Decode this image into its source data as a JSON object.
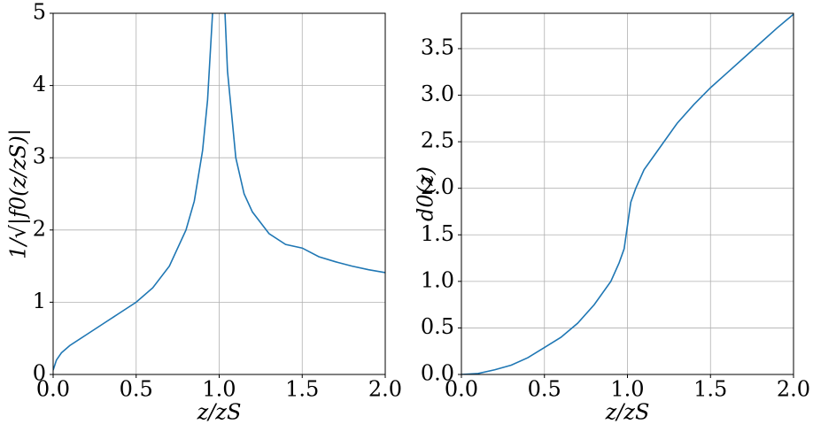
{
  "chart_data": [
    {
      "type": "line",
      "xlabel": "z/zS",
      "ylabel": "1/√|f0(z/zS)|",
      "x": [
        0,
        0.02,
        0.05,
        0.1,
        0.2,
        0.3,
        0.4,
        0.5,
        0.6,
        0.7,
        0.8,
        0.85,
        0.9,
        0.93,
        0.96,
        1.0,
        1.035,
        1.05,
        1.1,
        1.15,
        1.2,
        1.3,
        1.4,
        1.5,
        1.6,
        1.7,
        1.8,
        1.9,
        2.0
      ],
      "series": [
        {
          "color": "#1f77b4",
          "values": [
            0.06,
            0.2,
            0.3,
            0.4,
            0.55,
            0.7,
            0.85,
            1.0,
            1.2,
            1.5,
            2.0,
            2.4,
            3.1,
            3.8,
            5.0,
            null,
            5.0,
            4.2,
            3.0,
            2.5,
            2.25,
            1.95,
            1.8,
            1.75,
            1.63,
            1.56,
            1.5,
            1.45,
            1.41
          ]
        }
      ],
      "xlim": [
        0,
        2
      ],
      "ylim": [
        0,
        5
      ],
      "xticks": [
        {
          "value": 0,
          "label": "0.0"
        },
        {
          "value": 0.5,
          "label": "0.5"
        },
        {
          "value": 1,
          "label": "1.0"
        },
        {
          "value": 1.5,
          "label": "1.5"
        },
        {
          "value": 2,
          "label": "2.0"
        }
      ],
      "yticks": [
        0,
        1,
        2,
        3,
        4,
        5
      ],
      "grid": true
    },
    {
      "type": "line",
      "xlabel": "z/zS",
      "ylabel": "d0(z)",
      "x": [
        0,
        0.1,
        0.2,
        0.3,
        0.4,
        0.5,
        0.6,
        0.7,
        0.8,
        0.9,
        0.95,
        0.98,
        1.0,
        1.02,
        1.05,
        1.1,
        1.2,
        1.3,
        1.4,
        1.5,
        1.6,
        1.7,
        1.8,
        1.9,
        2.0
      ],
      "series": [
        {
          "color": "#1f77b4",
          "values": [
            0,
            0.01,
            0.05,
            0.1,
            0.18,
            0.29,
            0.4,
            0.55,
            0.75,
            1.0,
            1.2,
            1.35,
            1.6,
            1.85,
            2.0,
            2.2,
            2.45,
            2.7,
            2.9,
            3.08,
            3.24,
            3.4,
            3.56,
            3.72,
            3.87
          ]
        }
      ],
      "xlim": [
        0,
        2
      ],
      "ylim": [
        0,
        3.88
      ],
      "xticks": [
        {
          "value": 0,
          "label": "0.0"
        },
        {
          "value": 0.5,
          "label": "0.5"
        },
        {
          "value": 1,
          "label": "1.0"
        },
        {
          "value": 1.5,
          "label": "1.5"
        },
        {
          "value": 2,
          "label": "2.0"
        }
      ],
      "yticks": [
        {
          "value": 0,
          "label": "0.0"
        },
        {
          "value": 0.5,
          "label": "0.5"
        },
        {
          "value": 1,
          "label": "1.0"
        },
        {
          "value": 1.5,
          "label": "1.5"
        },
        {
          "value": 2,
          "label": "2.0"
        },
        {
          "value": 2.5,
          "label": "2.5"
        },
        {
          "value": 3,
          "label": "3.0"
        },
        {
          "value": 3.5,
          "label": "3.5"
        }
      ],
      "grid": true
    }
  ]
}
